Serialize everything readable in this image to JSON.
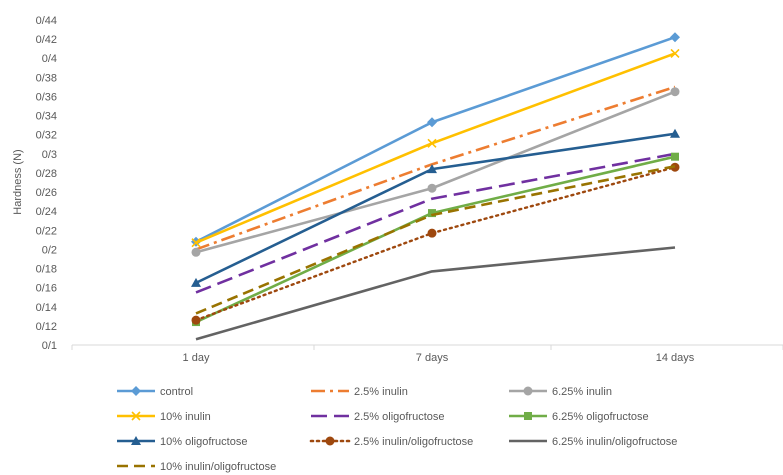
{
  "chart_data": {
    "type": "line",
    "title": "",
    "xlabel": "",
    "ylabel": "Hardness (N)",
    "categories": [
      "1 day",
      "7 days",
      "14 days"
    ],
    "ylim": [
      0.1,
      0.44
    ],
    "yticks": [
      {
        "value": 0.1,
        "label": "0/1"
      },
      {
        "value": 0.12,
        "label": "0/12"
      },
      {
        "value": 0.14,
        "label": "0/14"
      },
      {
        "value": 0.16,
        "label": "0/16"
      },
      {
        "value": 0.18,
        "label": "0/18"
      },
      {
        "value": 0.2,
        "label": "0/2"
      },
      {
        "value": 0.22,
        "label": "0/22"
      },
      {
        "value": 0.24,
        "label": "0/24"
      },
      {
        "value": 0.26,
        "label": "0/26"
      },
      {
        "value": 0.28,
        "label": "0/28"
      },
      {
        "value": 0.3,
        "label": "0/3"
      },
      {
        "value": 0.32,
        "label": "0/32"
      },
      {
        "value": 0.34,
        "label": "0/34"
      },
      {
        "value": 0.36,
        "label": "0/36"
      },
      {
        "value": 0.38,
        "label": "0/38"
      },
      {
        "value": 0.4,
        "label": "0/4"
      },
      {
        "value": 0.42,
        "label": "0/42"
      },
      {
        "value": 0.44,
        "label": "0/44"
      }
    ],
    "grid": false,
    "legend_position": "bottom",
    "series": [
      {
        "name": "control",
        "values": [
          0.208,
          0.333,
          0.422
        ],
        "color": "#5B9BD5",
        "dash": "solid",
        "marker": "diamond"
      },
      {
        "name": "2.5% inulin",
        "values": [
          0.2,
          0.289,
          0.37
        ],
        "color": "#ED7D31",
        "dash": "dashdot",
        "marker": "none"
      },
      {
        "name": "6.25% inulin",
        "values": [
          0.197,
          0.264,
          0.365
        ],
        "color": "#A5A5A5",
        "dash": "solid",
        "marker": "circle"
      },
      {
        "name": "10% inulin",
        "values": [
          0.207,
          0.311,
          0.405
        ],
        "color": "#FFC000",
        "dash": "solid",
        "marker": "x"
      },
      {
        "name": "2.5% oligofructose",
        "values": [
          0.155,
          0.253,
          0.3
        ],
        "color": "#7030A0",
        "dash": "longdash",
        "marker": "none"
      },
      {
        "name": "6.25% oligofructose",
        "values": [
          0.124,
          0.238,
          0.297
        ],
        "color": "#70AD47",
        "dash": "solid",
        "marker": "square"
      },
      {
        "name": "10% oligofructose",
        "values": [
          0.165,
          0.284,
          0.321
        ],
        "color": "#255E91",
        "dash": "solid",
        "marker": "triangle"
      },
      {
        "name": "2.5% inulin/oligofructose",
        "values": [
          0.126,
          0.217,
          0.286
        ],
        "color": "#9E480E",
        "dash": "dotted",
        "marker": "circle"
      },
      {
        "name": "6.25% inulin/oligofructose",
        "values": [
          0.106,
          0.177,
          0.202
        ],
        "color": "#636363",
        "dash": "solid",
        "marker": "none"
      },
      {
        "name": "10% inulin/oligofructose",
        "values": [
          0.133,
          0.236,
          0.287
        ],
        "color": "#997300",
        "dash": "dash",
        "marker": "none"
      }
    ]
  }
}
